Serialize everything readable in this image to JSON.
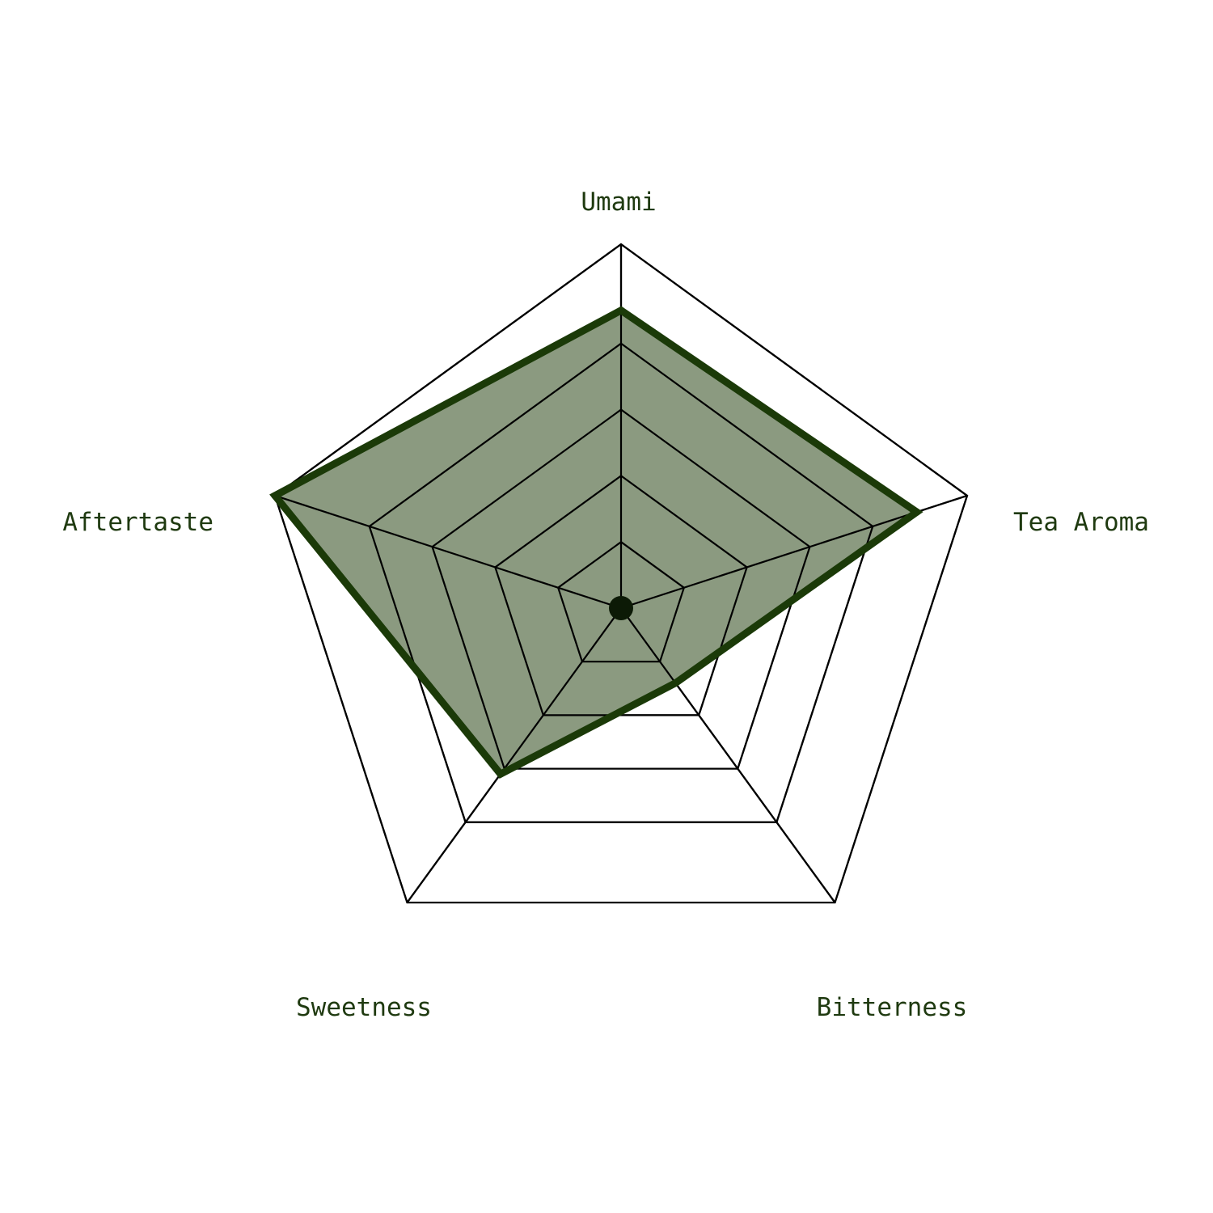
{
  "chart_data": {
    "type": "radar",
    "title": "",
    "axes": [
      "Umami",
      "Tea Aroma",
      "Bitterness",
      "Sweetness",
      "Aftertaste"
    ],
    "series": [
      {
        "values": [
          4.5,
          4.7,
          1.4,
          3.1,
          5.5
        ]
      }
    ],
    "range": [
      0,
      5.5
    ],
    "grid_levels": [
      1,
      2,
      3,
      4,
      5.5
    ],
    "colors": {
      "fill": "#8b9a80",
      "line": "#1b3a08",
      "label": "#1f3a10",
      "grid": "#000000",
      "center_dot": "#0c1a06"
    }
  }
}
